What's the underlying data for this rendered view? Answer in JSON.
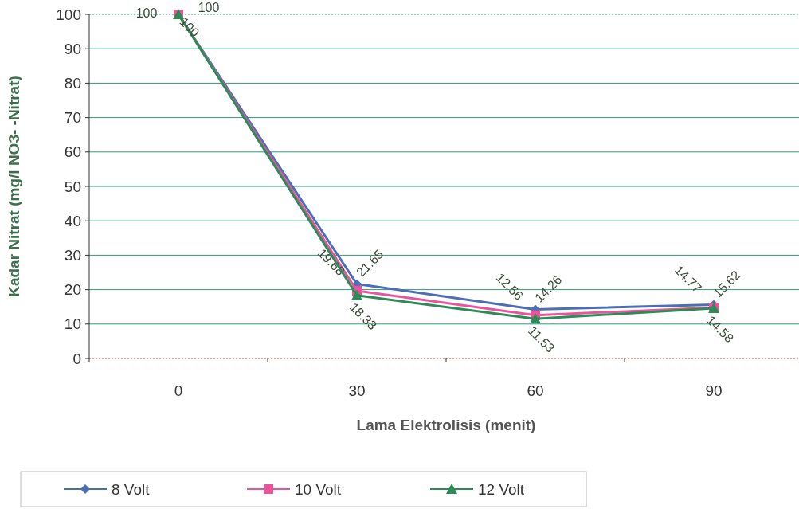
{
  "chart_data": {
    "type": "line",
    "xlabel": "Lama Elektrolisis (menit)",
    "ylabel": "Kadar Nitrat (mg/l NO3- -Nitrat)",
    "categories": [
      "0",
      "30",
      "60",
      "90"
    ],
    "series": [
      {
        "name": "8 Volt",
        "color": "#4a6fb5",
        "marker": "diamond",
        "values": [
          100,
          21.65,
          14.26,
          15.62
        ]
      },
      {
        "name": "10 Volt",
        "color": "#e8559a",
        "marker": "square",
        "values": [
          100,
          19.68,
          12.56,
          14.77
        ]
      },
      {
        "name": "12 Volt",
        "color": "#2e8b57",
        "marker": "triangle",
        "values": [
          100,
          18.33,
          11.53,
          14.58
        ]
      }
    ],
    "ylim": [
      0,
      100
    ],
    "yticks": [
      0,
      10,
      20,
      30,
      40,
      50,
      60,
      70,
      80,
      90,
      100
    ],
    "grid": "y",
    "legend": "bottom",
    "data_labels": true,
    "line_style": "solid"
  }
}
